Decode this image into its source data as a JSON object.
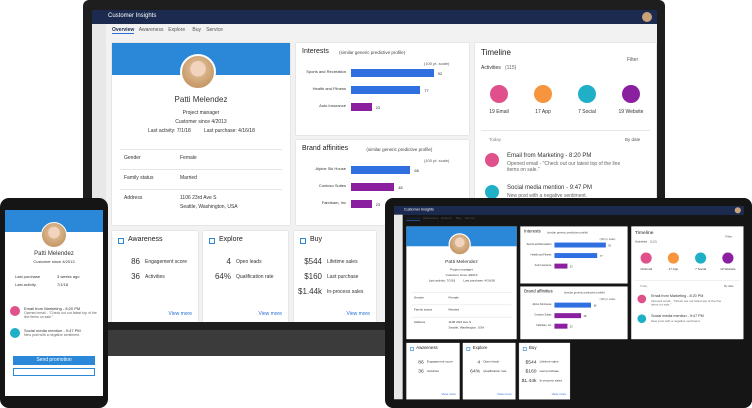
{
  "app_title": "Customer Insights",
  "tabs": [
    "Overview",
    "Awareness",
    "Explore",
    "Buy",
    "Service"
  ],
  "profile": {
    "name": "Patti Melendez",
    "role": "Project manager",
    "since": "Customer since 4/2013",
    "last_activity": "Last activity: 7/1/18",
    "last_purchase": "Last purchase: 4/16/18",
    "fields": [
      [
        "Gender",
        "Female"
      ],
      [
        "Family status",
        "Married"
      ],
      [
        "Address",
        "1106 23rd Ave S",
        "Seattle, Washington, USA"
      ]
    ]
  },
  "chart_data": [
    {
      "type": "bar",
      "orientation": "horizontal",
      "title": "Interests",
      "subtitle": "(similar generic predictive profile)",
      "scale_label": "(100 pt. scale)",
      "categories": [
        "Sports and Recreation",
        "Health and Fitness",
        "Auto Insurance"
      ],
      "values": [
        92,
        77,
        23
      ],
      "colors": [
        "#2f6fe0",
        "#2f6fe0",
        "#8a1fa0"
      ],
      "xlim": [
        0,
        100
      ]
    },
    {
      "type": "bar",
      "orientation": "horizontal",
      "title": "Brand affinities",
      "subtitle": "(similar generic predictive profile)",
      "scale_label": "(100 pt. scale)",
      "categories": [
        "Alpine Ski House",
        "Contoso Suites",
        "Fabrikam, Inc"
      ],
      "values": [
        66,
        48,
        23
      ],
      "colors": [
        "#2f6fe0",
        "#8a1fa0",
        "#8a1fa0"
      ],
      "xlim": [
        0,
        100
      ]
    }
  ],
  "timeline": {
    "title": "Timeline",
    "filter": "Filter",
    "activities": "Activities",
    "count": "(115)",
    "channels": [
      "19 Email",
      "17 App",
      "7 Social",
      "19 Website"
    ],
    "today": "Today",
    "sort": "By date",
    "items": [
      {
        "title": "Email from Marketing - 8:20 PM",
        "text": "Opened email - \"Check out our latest top of the line items on sale.\""
      },
      {
        "title": "Social media mention - 9:47 PM",
        "text": "New post with a negative sentiment."
      }
    ]
  },
  "cards": [
    {
      "title": "Awareness",
      "rows": [
        [
          "86",
          "Engagement score"
        ],
        [
          "36",
          "Activities"
        ]
      ],
      "link": "View more"
    },
    {
      "title": "Explore",
      "rows": [
        [
          "4",
          "Open leads"
        ],
        [
          "64%",
          "Qualification rate"
        ]
      ],
      "link": "View more"
    },
    {
      "title": "Buy",
      "rows": [
        [
          "$544",
          "Lifetime sales"
        ],
        [
          "$160",
          "Last purchase"
        ],
        [
          "$1.44k",
          "In-process sales"
        ]
      ],
      "link": "View more"
    }
  ],
  "phone": {
    "rows": [
      [
        "Last purchase",
        "3 weeks ago"
      ],
      [
        "Last activity",
        "7/1/18"
      ]
    ],
    "button": "Send promotion"
  }
}
